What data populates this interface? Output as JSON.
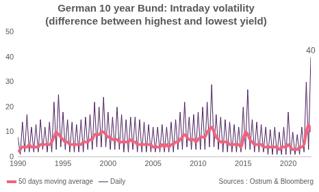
{
  "chart_data": {
    "type": "line",
    "title": "German 10 year Bund: Intraday volatility",
    "subtitle": "(difference between highest and lowest yield)",
    "source": "Sources : Ostrum & Bloomberg",
    "x": [
      1990,
      1990.25,
      1990.5,
      1990.75,
      1991,
      1991.25,
      1991.5,
      1991.75,
      1992,
      1992.25,
      1992.5,
      1992.75,
      1993,
      1993.25,
      1993.5,
      1993.75,
      1994,
      1994.25,
      1994.5,
      1994.75,
      1995,
      1995.25,
      1995.5,
      1995.75,
      1996,
      1996.25,
      1996.5,
      1996.75,
      1997,
      1997.25,
      1997.5,
      1997.75,
      1998,
      1998.25,
      1998.5,
      1998.75,
      1999,
      1999.25,
      1999.5,
      1999.75,
      2000,
      2000.25,
      2000.5,
      2000.75,
      2001,
      2001.25,
      2001.5,
      2001.75,
      2002,
      2002.25,
      2002.5,
      2002.75,
      2003,
      2003.25,
      2003.5,
      2003.75,
      2004,
      2004.25,
      2004.5,
      2004.75,
      2005,
      2005.25,
      2005.5,
      2005.75,
      2006,
      2006.25,
      2006.5,
      2006.75,
      2007,
      2007.25,
      2007.5,
      2007.75,
      2008,
      2008.25,
      2008.5,
      2008.75,
      2009,
      2009.25,
      2009.5,
      2009.75,
      2010,
      2010.25,
      2010.5,
      2010.75,
      2011,
      2011.25,
      2011.5,
      2011.75,
      2012,
      2012.25,
      2012.5,
      2012.75,
      2013,
      2013.25,
      2013.5,
      2013.75,
      2014,
      2014.25,
      2014.5,
      2014.75,
      2015,
      2015.25,
      2015.5,
      2015.75,
      2016,
      2016.25,
      2016.5,
      2016.75,
      2017,
      2017.25,
      2017.5,
      2017.75,
      2018,
      2018.25,
      2018.5,
      2018.75,
      2019,
      2019.25,
      2019.5,
      2019.75,
      2020,
      2020.25,
      2020.5,
      2020.75,
      2021,
      2021.25,
      2021.5,
      2021.75,
      2022,
      2022.25,
      2022.5
    ],
    "series": [
      {
        "name": "Daily",
        "color": "#4b1f5c",
        "line_style": "solid",
        "values": [
          8,
          1,
          14,
          2,
          17,
          2,
          12,
          2,
          13,
          2,
          15,
          3,
          12,
          2,
          14,
          2,
          22,
          3,
          25,
          4,
          18,
          3,
          15,
          2,
          14,
          2,
          13,
          2,
          15,
          2,
          16,
          3,
          17,
          3,
          22,
          4,
          20,
          4,
          24,
          4,
          18,
          3,
          16,
          3,
          20,
          3,
          17,
          2,
          15,
          2,
          16,
          3,
          16,
          2,
          15,
          2,
          14,
          2,
          13,
          2,
          12,
          2,
          12,
          2,
          13,
          2,
          12,
          2,
          14,
          2,
          15,
          3,
          18,
          3,
          22,
          4,
          16,
          3,
          17,
          3,
          18,
          3,
          20,
          3,
          22,
          4,
          29,
          4,
          17,
          3,
          16,
          2,
          15,
          2,
          14,
          2,
          13,
          2,
          12,
          2,
          20,
          3,
          27,
          3,
          15,
          2,
          14,
          2,
          13,
          2,
          12,
          1,
          11,
          1,
          12,
          1,
          10,
          1,
          12,
          1,
          18,
          1,
          10,
          1,
          9,
          1,
          12,
          2,
          30,
          3,
          40
        ]
      },
      {
        "name": "50 days moving average",
        "color": "#f0647e",
        "line_style": "solid",
        "values": [
          2,
          3,
          4,
          4,
          4,
          5,
          4,
          4,
          4,
          4,
          5,
          5,
          5,
          5,
          5,
          6,
          8,
          10,
          9,
          8,
          7,
          6,
          6,
          5,
          5,
          5,
          5,
          5,
          5,
          6,
          6,
          6,
          7,
          7,
          9,
          9,
          9,
          10,
          10,
          9,
          8,
          8,
          7,
          7,
          7,
          6,
          6,
          6,
          6,
          6,
          7,
          6,
          6,
          5,
          5,
          5,
          5,
          5,
          5,
          5,
          4,
          4,
          4,
          4,
          5,
          4,
          5,
          4,
          5,
          5,
          6,
          6,
          7,
          8,
          9,
          8,
          7,
          7,
          7,
          6,
          7,
          8,
          8,
          8,
          10,
          11,
          12,
          10,
          8,
          7,
          6,
          6,
          6,
          6,
          5,
          5,
          5,
          5,
          5,
          4,
          7,
          10,
          9,
          7,
          6,
          5,
          5,
          5,
          5,
          4,
          4,
          4,
          4,
          4,
          4,
          4,
          3,
          4,
          4,
          4,
          5,
          4,
          3,
          3,
          3,
          4,
          4,
          5,
          10,
          13,
          10
        ]
      }
    ],
    "annotations": [
      {
        "text": "40",
        "x": 2022.5,
        "y": 40
      }
    ],
    "xlim": [
      1990,
      2022.5
    ],
    "xticks": [
      1990,
      1995,
      2000,
      2005,
      2010,
      2015,
      2020
    ],
    "ylim": [
      0,
      50
    ],
    "yticks": [
      0,
      10,
      20,
      30,
      40,
      50
    ],
    "grid": false,
    "legend": "bottom"
  }
}
